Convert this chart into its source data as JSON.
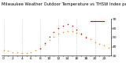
{
  "title": "Milwaukee Weather Outdoor Temperature vs THSW Index per Hour (24 Hours)",
  "hours": [
    0,
    1,
    2,
    3,
    4,
    5,
    6,
    7,
    8,
    9,
    10,
    11,
    12,
    13,
    14,
    15,
    16,
    17,
    18,
    19,
    20,
    21,
    22,
    23
  ],
  "temp_outdoor": [
    36,
    35,
    34,
    34,
    33,
    33,
    34,
    36,
    38,
    42,
    47,
    51,
    54,
    56,
    57,
    57,
    55,
    53,
    51,
    48,
    45,
    43,
    41,
    39
  ],
  "thsw_index": [
    null,
    null,
    null,
    null,
    null,
    null,
    null,
    null,
    38,
    44,
    51,
    56,
    60,
    63,
    64,
    63,
    58,
    54,
    50,
    null,
    null,
    null,
    null,
    null
  ],
  "temp_color": "#ff8800",
  "thsw_color": "#cc0000",
  "bg_color": "#ffffff",
  "grid_color": "#bbbbbb",
  "ylim": [
    30,
    70
  ],
  "xlim": [
    -0.5,
    23.5
  ],
  "yticks": [
    30,
    40,
    50,
    60,
    70
  ],
  "legend_line_color": "#cc0000",
  "title_fontsize": 3.8,
  "tick_fontsize": 3.2,
  "grid_vlines": [
    0,
    4,
    8,
    12,
    16,
    20
  ]
}
